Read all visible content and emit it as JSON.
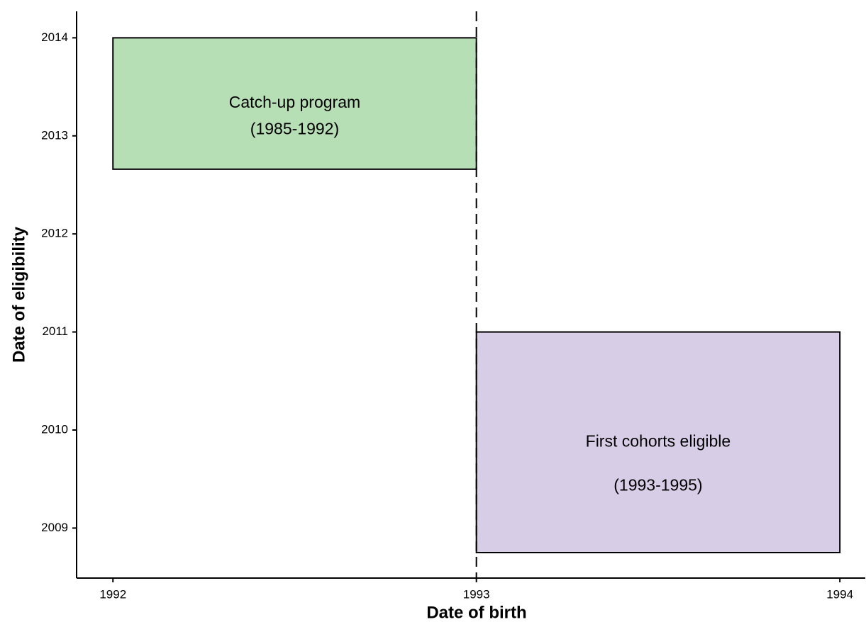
{
  "chart_data": {
    "type": "rect",
    "x_label": "Date of birth",
    "y_label": "Date of eligibility",
    "xlim": [
      1991.9,
      1994.07
    ],
    "ylim": [
      2008.49,
      2014.27
    ],
    "xticks": [
      1992,
      1993,
      1994
    ],
    "yticks": [
      2009,
      2010,
      2011,
      2012,
      2013,
      2014
    ],
    "vline": 1993,
    "rects": [
      {
        "x": [
          1992,
          1993
        ],
        "y": [
          2012.66,
          2014
        ],
        "color": "#b7dfb6",
        "label_lines": [
          "Catch-up program",
          "(1985-1992)"
        ]
      },
      {
        "x": [
          1993,
          1994
        ],
        "y": [
          2008.75,
          2011
        ],
        "color": "#d7cde6",
        "label_lines": [
          "First cohorts eligible",
          "(1993-1995)"
        ]
      }
    ]
  }
}
